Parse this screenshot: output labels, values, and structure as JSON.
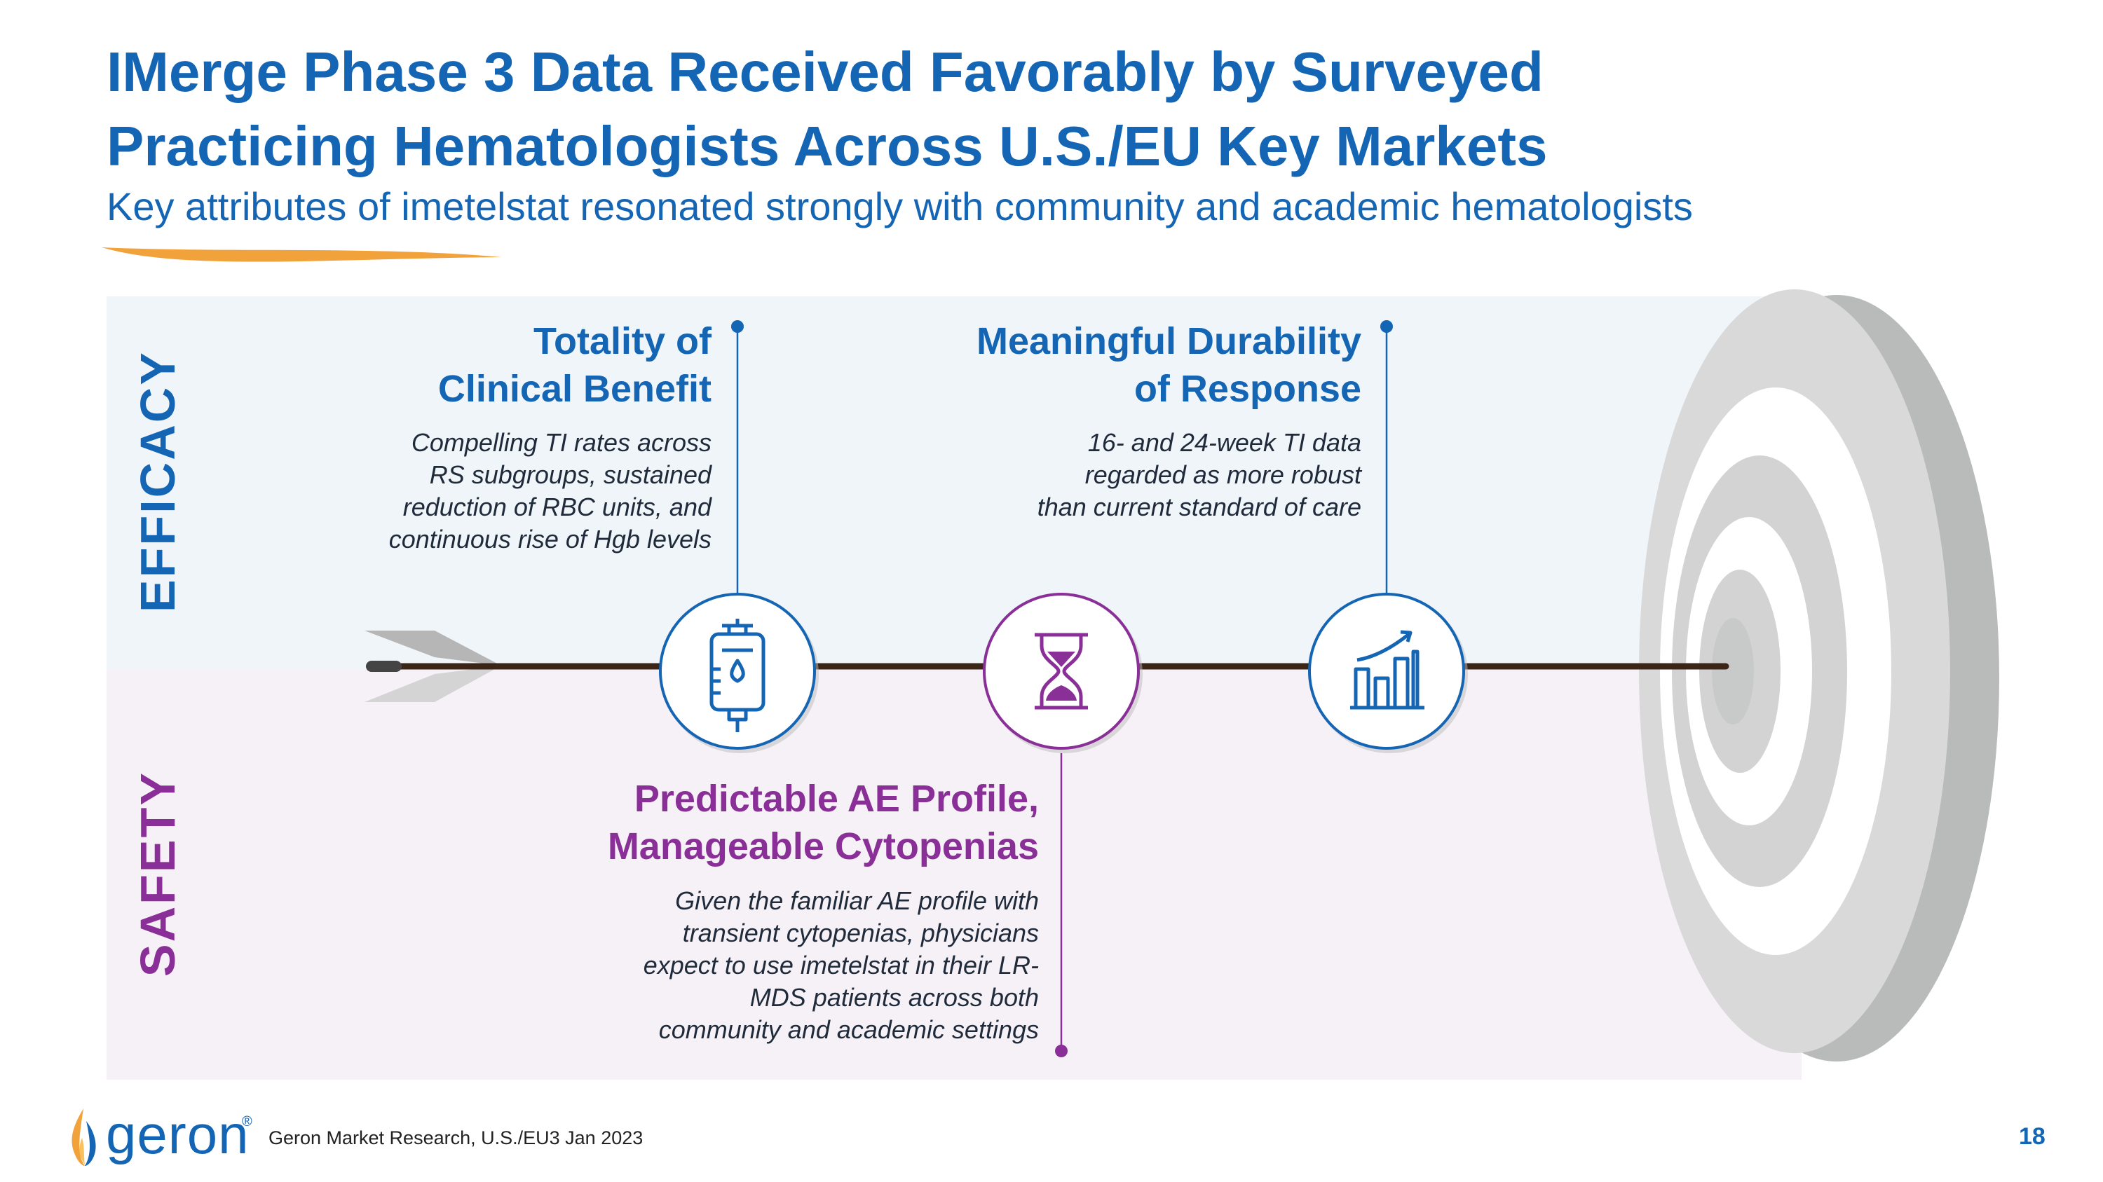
{
  "title": {
    "line1": "IMerge Phase 3 Data Received Favorably by Surveyed",
    "line2": "Practicing Hematologists Across U.S./EU Key Markets"
  },
  "subtitle": "Key attributes of imetelstat resonated strongly with community and academic hematologists",
  "bands": {
    "efficacy_label": "EFFICACY",
    "safety_label": "SAFETY"
  },
  "attributes": [
    {
      "heading_line1": "Totality of",
      "heading_line2": "Clinical Benefit",
      "desc_lines": [
        "Compelling TI rates across",
        "RS subgroups, sustained",
        "reduction of RBC units, and",
        "continuous rise of Hgb levels"
      ],
      "icon": "iv-bag-icon"
    },
    {
      "heading_line1": "Meaningful Durability",
      "heading_line2": "of Response",
      "desc_lines": [
        "16- and 24-week TI data",
        "regarded as more robust",
        "than current standard of care"
      ],
      "icon": "bar-chart-growth-icon"
    },
    {
      "heading_line1": "Predictable AE Profile,",
      "heading_line2": "Manageable Cytopenias",
      "desc_lines": [
        "Given the familiar AE profile with",
        "transient cytopenias, physicians",
        "expect to use imetelstat in their LR-",
        "MDS patients across both",
        "community and academic settings"
      ],
      "icon": "hourglass-icon"
    }
  ],
  "footer": {
    "logo_text": "geron",
    "logo_mark": "®",
    "source": "Geron Market Research, U.S./EU3 Jan 2023",
    "page_number": "18"
  },
  "colors": {
    "brand_blue": "#1565b5",
    "safety_purple": "#8a2f97",
    "efficacy_band": "#f0f5f9",
    "safety_band": "#f6f1f7",
    "arrow_shaft": "#3b2516",
    "swoosh_orange": "#f2a23a"
  }
}
